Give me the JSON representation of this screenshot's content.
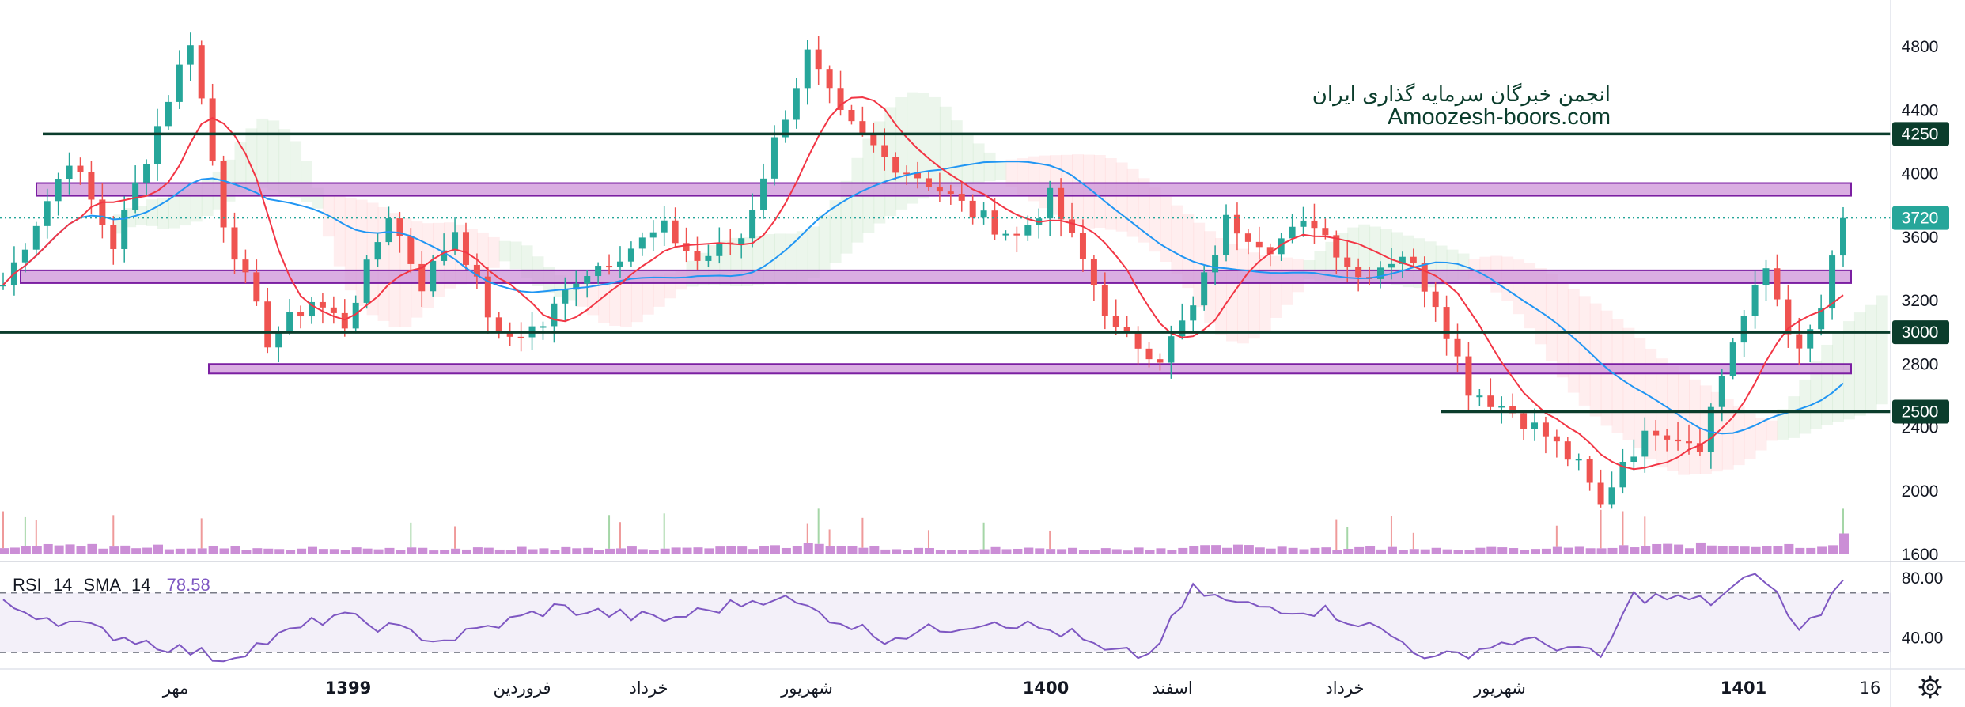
{
  "watermark": {
    "line1": "انجمن خبرگان سرمایه گذاری ایران",
    "line2": "Amoozesh-boors.com"
  },
  "price_axis": {
    "ticks": [
      "4800",
      "4400",
      "4000",
      "3600",
      "3200",
      "2800",
      "2400",
      "2000",
      "1600"
    ]
  },
  "badges": {
    "level_4250": "4250",
    "last_price": "3720",
    "level_3000": "3000",
    "level_2500": "2500"
  },
  "rsi": {
    "name": "RSI",
    "length": "14",
    "ma_type": "SMA",
    "ma_length": "14",
    "value": "78.58",
    "ticks": [
      "80.00",
      "40.00"
    ],
    "upper_band": 70,
    "lower_band": 30
  },
  "time_axis": {
    "labels": [
      {
        "text": "مهر",
        "bold": false
      },
      {
        "text": "1399",
        "bold": true
      },
      {
        "text": "فروردین",
        "bold": false
      },
      {
        "text": "خرداد",
        "bold": false
      },
      {
        "text": "شهریور",
        "bold": false
      },
      {
        "text": "1400",
        "bold": true
      },
      {
        "text": "اسفند",
        "bold": false
      },
      {
        "text": "خرداد",
        "bold": false
      },
      {
        "text": "شهریور",
        "bold": false
      },
      {
        "text": "1401",
        "bold": true
      },
      {
        "text": "16",
        "bold": false
      }
    ]
  },
  "settings_icon": "gear-icon",
  "colors": {
    "up_candle": "#26a69a",
    "down_candle": "#ef5350",
    "ma_fast": "#f23645",
    "ma_slow": "#2196f3",
    "zone_fill": "#ce93d8",
    "zone_border": "#7b1fa2",
    "level_line": "#0b3d2c",
    "rsi_line": "#7e57c2",
    "volume": "#ba68c8",
    "last_price_badge": "#26a69a"
  },
  "chart_data": {
    "type": "candlestick",
    "price_axis": {
      "min": 1600,
      "max": 4800,
      "ticks": [
        4800,
        4400,
        4000,
        3600,
        3200,
        2800,
        2400,
        2000,
        1600
      ]
    },
    "last_price": 3720,
    "horizontal_levels": [
      4250,
      3000,
      2500
    ],
    "support_resistance_zones": [
      {
        "low": 3860,
        "high": 3940
      },
      {
        "low": 3310,
        "high": 3390
      },
      {
        "low": 2740,
        "high": 2800
      }
    ],
    "price_path": [
      [
        0,
        3300
      ],
      [
        3,
        3700
      ],
      [
        6,
        4100
      ],
      [
        10,
        3550
      ],
      [
        14,
        4300
      ],
      [
        17,
        4850
      ],
      [
        20,
        3700
      ],
      [
        24,
        2950
      ],
      [
        28,
        3200
      ],
      [
        31,
        3050
      ],
      [
        35,
        3750
      ],
      [
        38,
        3300
      ],
      [
        41,
        3650
      ],
      [
        45,
        2950
      ],
      [
        49,
        3050
      ],
      [
        52,
        3350
      ],
      [
        56,
        3500
      ],
      [
        60,
        3650
      ],
      [
        63,
        3450
      ],
      [
        67,
        3600
      ],
      [
        70,
        4200
      ],
      [
        73,
        4750
      ],
      [
        76,
        4350
      ],
      [
        80,
        4100
      ],
      [
        84,
        3950
      ],
      [
        88,
        3750
      ],
      [
        92,
        3600
      ],
      [
        95,
        3850
      ],
      [
        98,
        3450
      ],
      [
        101,
        3000
      ],
      [
        105,
        2850
      ],
      [
        108,
        3150
      ],
      [
        111,
        3700
      ],
      [
        115,
        3550
      ],
      [
        119,
        3700
      ],
      [
        123,
        3350
      ],
      [
        127,
        3500
      ],
      [
        130,
        3200
      ],
      [
        133,
        2650
      ],
      [
        137,
        2500
      ],
      [
        140,
        2350
      ],
      [
        143,
        2150
      ],
      [
        145,
        1900
      ],
      [
        147,
        2200
      ],
      [
        150,
        2400
      ],
      [
        154,
        2300
      ],
      [
        157,
        2950
      ],
      [
        160,
        3400
      ],
      [
        163,
        2850
      ],
      [
        165,
        3150
      ],
      [
        167,
        3720
      ]
    ],
    "volume_profile": [
      [
        0,
        0.3
      ],
      [
        6,
        0.4
      ],
      [
        14,
        0.35
      ],
      [
        25,
        0.28
      ],
      [
        40,
        0.25
      ],
      [
        60,
        0.3
      ],
      [
        72,
        0.42
      ],
      [
        85,
        0.28
      ],
      [
        100,
        0.25
      ],
      [
        112,
        0.36
      ],
      [
        125,
        0.3
      ],
      [
        140,
        0.25
      ],
      [
        150,
        0.4
      ],
      [
        160,
        0.45
      ],
      [
        165,
        0.4
      ],
      [
        167,
        0.8
      ]
    ],
    "rsi_path": [
      [
        0,
        62
      ],
      [
        10,
        42
      ],
      [
        20,
        26
      ],
      [
        30,
        55
      ],
      [
        40,
        38
      ],
      [
        50,
        60
      ],
      [
        60,
        52
      ],
      [
        70,
        68
      ],
      [
        80,
        40
      ],
      [
        90,
        52
      ],
      [
        97,
        42
      ],
      [
        100,
        30
      ],
      [
        104,
        28
      ],
      [
        108,
        72
      ],
      [
        112,
        62
      ],
      [
        120,
        58
      ],
      [
        125,
        45
      ],
      [
        130,
        25
      ],
      [
        137,
        38
      ],
      [
        142,
        34
      ],
      [
        145,
        26
      ],
      [
        148,
        68
      ],
      [
        155,
        64
      ],
      [
        158,
        78
      ],
      [
        160,
        80
      ],
      [
        163,
        44
      ],
      [
        165,
        58
      ],
      [
        167,
        78.58
      ]
    ],
    "rsi_axis": {
      "min": 20,
      "max": 90
    }
  }
}
